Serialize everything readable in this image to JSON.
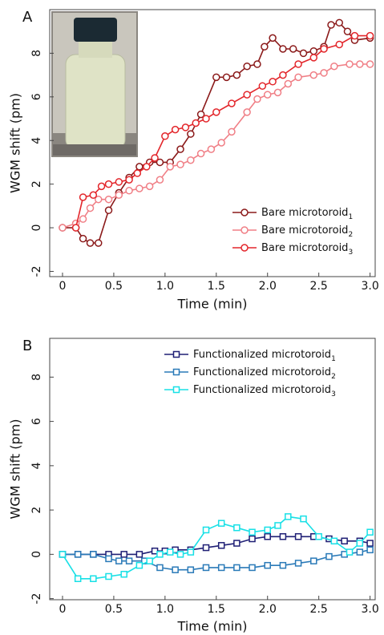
{
  "chart_data": [
    {
      "type": "line",
      "panel": "A",
      "marker": "circle",
      "legend": "lower right",
      "xlabel": "Time (min)",
      "ylabel": "WGM shift (pm)",
      "xlim": [
        -0.125,
        3.05
      ],
      "ylim": [
        -2.24,
        10
      ],
      "xticks": [
        0,
        0.5,
        {
          "value": 1,
          "label": "1.0"
        },
        1.5,
        {
          "value": 2,
          "label": "2.0"
        },
        2.5,
        {
          "value": 3,
          "label": "3.0"
        }
      ],
      "yticks": [
        -2,
        0,
        2,
        4,
        6,
        8
      ],
      "series": [
        {
          "name": "Bare microtoroid",
          "name_sub": "1",
          "color": "#8b1a1a",
          "x": [
            0,
            0.13,
            0.2,
            0.27,
            0.35,
            0.45,
            0.55,
            0.65,
            0.75,
            0.85,
            0.95,
            1.05,
            1.15,
            1.25,
            1.35,
            1.5,
            1.6,
            1.7,
            1.8,
            1.9,
            1.97,
            2.05,
            2.15,
            2.25,
            2.35,
            2.45,
            2.55,
            2.62,
            2.7,
            2.78,
            2.85,
            3.0
          ],
          "values": [
            0,
            0,
            -0.5,
            -0.7,
            -0.7,
            0.8,
            1.6,
            2.3,
            2.8,
            3.0,
            3.0,
            3.0,
            3.6,
            4.3,
            5.2,
            6.9,
            6.9,
            7.0,
            7.4,
            7.5,
            8.3,
            8.7,
            8.2,
            8.2,
            8.0,
            8.1,
            8.3,
            9.3,
            9.4,
            9.0,
            8.6,
            8.7
          ]
        },
        {
          "name": "Bare microtoroid",
          "name_sub": "2",
          "color": "#f07f86",
          "x": [
            0,
            0.13,
            0.2,
            0.27,
            0.35,
            0.45,
            0.55,
            0.65,
            0.75,
            0.85,
            0.95,
            1.05,
            1.15,
            1.25,
            1.35,
            1.45,
            1.55,
            1.65,
            1.8,
            1.9,
            2.0,
            2.1,
            2.2,
            2.3,
            2.45,
            2.55,
            2.65,
            2.8,
            2.9,
            3.0
          ],
          "values": [
            0,
            0.2,
            0.4,
            0.9,
            1.3,
            1.3,
            1.5,
            1.7,
            1.8,
            1.9,
            2.2,
            2.8,
            2.9,
            3.1,
            3.4,
            3.6,
            3.9,
            4.4,
            5.3,
            5.9,
            6.1,
            6.2,
            6.6,
            6.9,
            7.0,
            7.1,
            7.4,
            7.5,
            7.5,
            7.5
          ]
        },
        {
          "name": "Bare microtoroid",
          "name_sub": "3",
          "color": "#e3262b",
          "x": [
            0.13,
            0.2,
            0.3,
            0.38,
            0.45,
            0.55,
            0.65,
            0.73,
            0.82,
            0.9,
            1.0,
            1.1,
            1.2,
            1.3,
            1.4,
            1.5,
            1.65,
            1.8,
            1.95,
            2.05,
            2.15,
            2.3,
            2.45,
            2.55,
            2.7,
            2.85,
            3.0
          ],
          "values": [
            0,
            1.4,
            1.5,
            1.9,
            2.0,
            2.1,
            2.2,
            2.5,
            2.8,
            3.2,
            4.2,
            4.5,
            4.6,
            4.8,
            5.0,
            5.3,
            5.7,
            6.1,
            6.5,
            6.7,
            7.0,
            7.5,
            7.8,
            8.2,
            8.4,
            8.8,
            8.8
          ]
        }
      ]
    },
    {
      "type": "line",
      "panel": "B",
      "marker": "square",
      "legend": "upper right",
      "xlabel": "Time (min)",
      "ylabel": "WGM shift (pm)",
      "xlim": [
        -0.125,
        3.05
      ],
      "ylim": [
        -2.05,
        9.75
      ],
      "xticks": [
        0,
        0.5,
        {
          "value": 1,
          "label": "1.0"
        },
        1.5,
        {
          "value": 2,
          "label": "2.0"
        },
        2.5,
        {
          "value": 3,
          "label": "3.0"
        }
      ],
      "yticks": [
        -2,
        0,
        2,
        4,
        6,
        8
      ],
      "series": [
        {
          "name": "Functionalized microtoroid",
          "name_sub": "1",
          "color": "#1f1f75",
          "x": [
            0,
            0.15,
            0.3,
            0.45,
            0.6,
            0.75,
            0.9,
            1.0,
            1.1,
            1.25,
            1.4,
            1.55,
            1.7,
            1.85,
            2.0,
            2.15,
            2.3,
            2.45,
            2.6,
            2.75,
            2.9,
            3.0
          ],
          "values": [
            0,
            0,
            0,
            0,
            0,
            0,
            0.15,
            0.15,
            0.2,
            0.2,
            0.3,
            0.4,
            0.5,
            0.7,
            0.8,
            0.8,
            0.8,
            0.8,
            0.7,
            0.6,
            0.6,
            0.5
          ]
        },
        {
          "name": "Functionalized microtoroid",
          "name_sub": "2",
          "color": "#2a7ab8",
          "x": [
            0,
            0.15,
            0.3,
            0.45,
            0.55,
            0.65,
            0.8,
            0.95,
            1.1,
            1.25,
            1.4,
            1.55,
            1.7,
            1.85,
            2.0,
            2.15,
            2.3,
            2.45,
            2.6,
            2.75,
            2.9,
            3.0
          ],
          "values": [
            0,
            0,
            0,
            -0.2,
            -0.3,
            -0.3,
            -0.3,
            -0.6,
            -0.7,
            -0.7,
            -0.6,
            -0.6,
            -0.6,
            -0.6,
            -0.5,
            -0.5,
            -0.4,
            -0.3,
            -0.1,
            0,
            0.1,
            0.2
          ]
        },
        {
          "name": "Functionalized microtoroid",
          "name_sub": "3",
          "color": "#18e0e6",
          "x": [
            0,
            0.15,
            0.3,
            0.45,
            0.6,
            0.75,
            0.85,
            0.95,
            1.05,
            1.15,
            1.25,
            1.4,
            1.55,
            1.7,
            1.85,
            2.0,
            2.1,
            2.2,
            2.35,
            2.5,
            2.65,
            2.8,
            2.9,
            3.0
          ],
          "values": [
            0,
            -1.1,
            -1.1,
            -1.0,
            -0.9,
            -0.5,
            -0.3,
            0,
            0.1,
            0,
            0.1,
            1.1,
            1.4,
            1.2,
            1.0,
            1.1,
            1.3,
            1.7,
            1.6,
            0.8,
            0.6,
            0.1,
            0.5,
            1.0
          ]
        }
      ]
    }
  ]
}
